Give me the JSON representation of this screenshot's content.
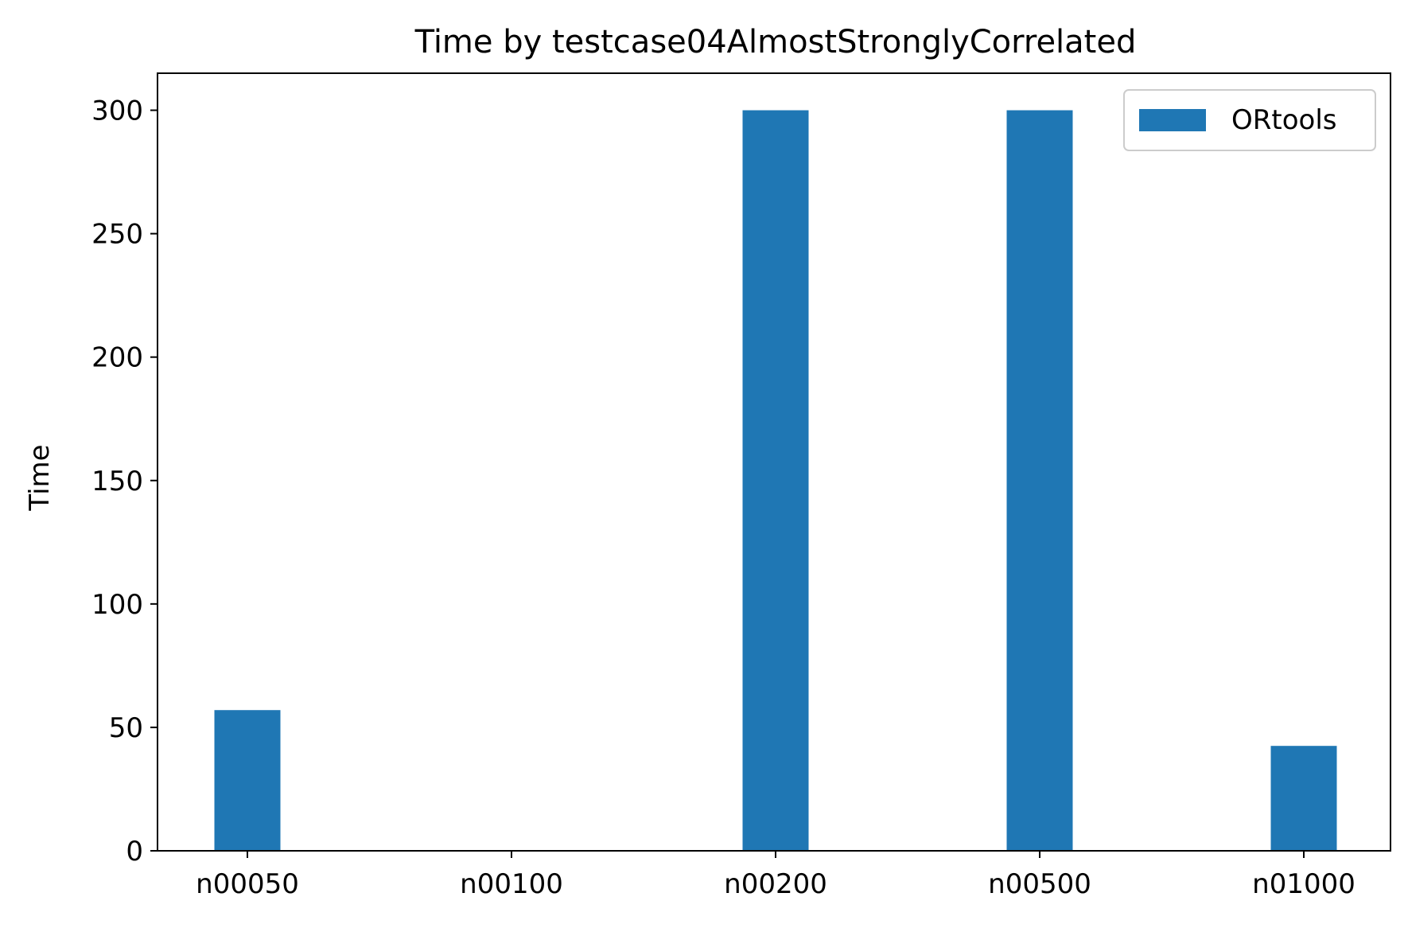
{
  "chart_data": {
    "type": "bar",
    "title": "Time by testcase04AlmostStronglyCorrelated",
    "xlabel": "",
    "ylabel": "Time",
    "categories": [
      "n00050",
      "n00100",
      "n00200",
      "n00500",
      "n01000"
    ],
    "series": [
      {
        "name": "ORtools",
        "values": [
          57,
          0,
          300,
          300,
          42.5
        ],
        "color": "#1f77b4"
      }
    ],
    "ylim": [
      0,
      315
    ],
    "yticks": [
      0,
      50,
      100,
      150,
      200,
      250,
      300
    ],
    "grid": false,
    "legend_position": "top-right"
  }
}
